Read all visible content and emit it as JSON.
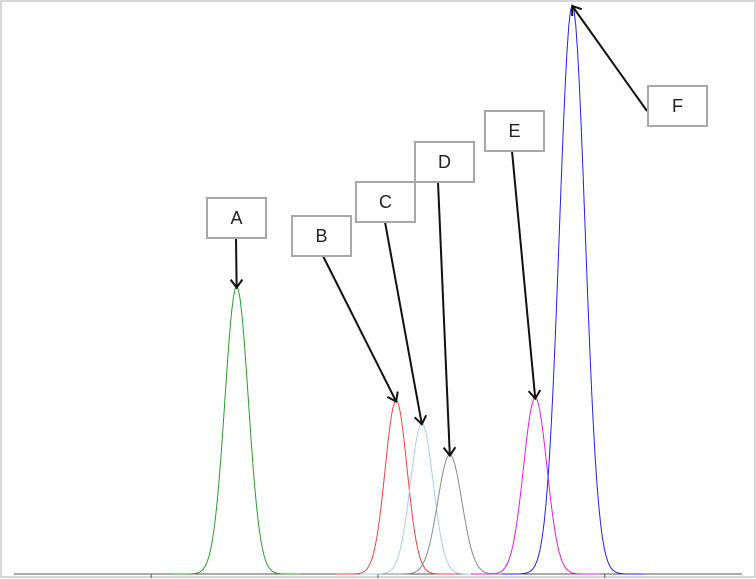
{
  "chart_data": {
    "type": "line",
    "title": "",
    "xlabel": "",
    "ylabel": "",
    "xlim": [
      0,
      100
    ],
    "ylim": [
      0,
      100
    ],
    "grid": false,
    "legend": "none",
    "x_ticks": [
      20,
      50,
      80
    ],
    "series": [
      {
        "id": "A",
        "color": "#2e9a2e",
        "center": 31.3,
        "height": 50.5,
        "sigma": 1.55
      },
      {
        "id": "B",
        "color": "#e84545",
        "center": 52.4,
        "height": 30.5,
        "sigma": 1.45
      },
      {
        "id": "C",
        "color": "#a9cdf0",
        "center": 55.8,
        "height": 26.5,
        "sigma": 1.5
      },
      {
        "id": "D",
        "color": "#8a8a8a",
        "center": 59.5,
        "height": 21.0,
        "sigma": 1.6
      },
      {
        "id": "E",
        "color": "#e020e0",
        "center": 70.8,
        "height": 31.0,
        "sigma": 1.55
      },
      {
        "id": "F",
        "color": "#2323d6",
        "center": 75.7,
        "height": 100,
        "sigma": 1.7
      }
    ],
    "annotations": [
      {
        "label": "A",
        "target": "A"
      },
      {
        "label": "B",
        "target": "B"
      },
      {
        "label": "C",
        "target": "C"
      },
      {
        "label": "D",
        "target": "D"
      },
      {
        "label": "E",
        "target": "E"
      },
      {
        "label": "F",
        "target": "F"
      }
    ]
  }
}
